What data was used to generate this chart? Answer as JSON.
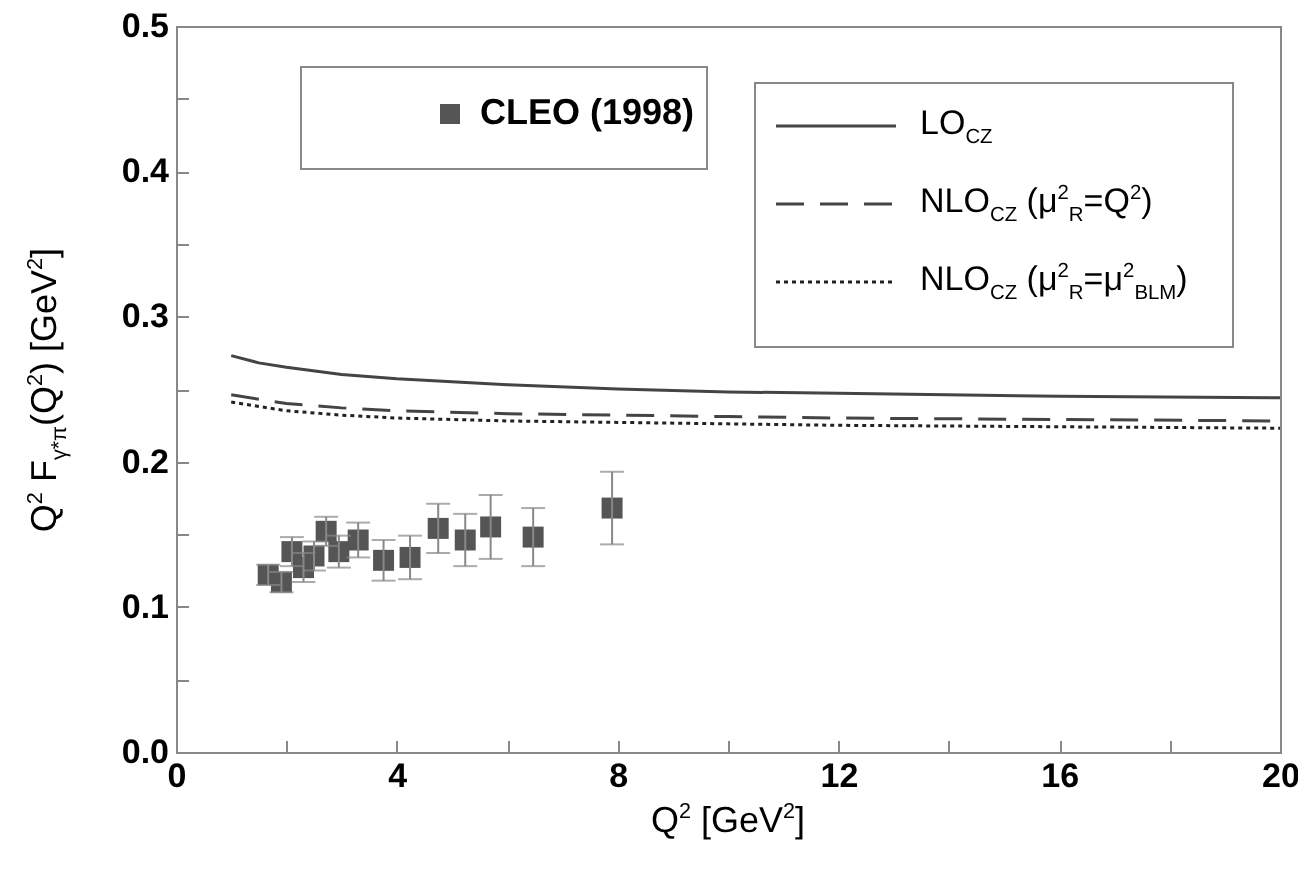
{
  "chart_data": {
    "type": "scatter",
    "xlabel": "Q$^{2}$ [GeV$^{2}$]",
    "ylabel": "Q$^{2}$ F$_{γ*π}$(Q$^{2}$) [GeV$^{2}$]",
    "xlim": [
      0,
      20
    ],
    "ylim": [
      0,
      0.5
    ],
    "xticks": [
      0,
      {
        "value": 2,
        "label": null
      },
      4,
      {
        "value": 6,
        "label": null
      },
      8,
      {
        "value": 10,
        "label": null
      },
      12,
      {
        "value": 14,
        "label": null
      },
      16,
      {
        "value": 18,
        "label": null
      },
      20
    ],
    "yticks": [
      {
        "value": 0,
        "label": "0.0"
      },
      {
        "value": 0.05,
        "label": null
      },
      0.1,
      {
        "value": 0.15,
        "label": null
      },
      0.2,
      {
        "value": 0.25,
        "label": null
      },
      0.3,
      {
        "value": 0.35,
        "label": null
      },
      0.4,
      {
        "value": 0.45,
        "label": null
      },
      0.5
    ],
    "grid": false,
    "legend": "top",
    "series": [
      {
        "name": "CLEO (1998)",
        "type": "scatter",
        "marker": "square",
        "color": "#555555",
        "x": [
          1.67,
          1.91,
          2.1,
          2.31,
          2.5,
          2.72,
          2.95,
          3.3,
          3.76,
          4.24,
          4.75,
          5.24,
          5.7,
          6.47,
          7.9
        ],
        "values": [
          0.122,
          0.117,
          0.138,
          0.127,
          0.135,
          0.152,
          0.138,
          0.146,
          0.132,
          0.134,
          0.154,
          0.146,
          0.155,
          0.148,
          0.168
        ],
        "errors": [
          0.007,
          0.007,
          0.01,
          0.01,
          0.01,
          0.01,
          0.011,
          0.012,
          0.014,
          0.015,
          0.017,
          0.018,
          0.022,
          0.02,
          0.025
        ]
      },
      {
        "name": "LO$_{CZ}$",
        "type": "line",
        "line_style": "solid",
        "color": "#444444",
        "x": [
          1,
          1.5,
          2,
          3,
          4,
          6,
          8,
          10,
          12,
          16,
          20
        ],
        "values": [
          0.273,
          0.268,
          0.265,
          0.26,
          0.257,
          0.253,
          0.25,
          0.248,
          0.247,
          0.245,
          0.244
        ]
      },
      {
        "name": "NLO$_{CZ}$  (μ$^{2}$$_{R}$=Q$^{2}$)",
        "type": "line",
        "line_style": "dashed",
        "color": "#444444",
        "x": [
          1,
          1.5,
          2,
          3,
          4,
          6,
          8,
          10,
          12,
          16,
          20
        ],
        "values": [
          0.246,
          0.243,
          0.24,
          0.237,
          0.235,
          0.233,
          0.232,
          0.231,
          0.23,
          0.229,
          0.228
        ]
      },
      {
        "name": "NLO$_{CZ}$  (μ$^{2}$$_{R}$=μ$^{2}$$_{BLM}$)",
        "type": "line",
        "line_style": "dotted",
        "color": "#222222",
        "x": [
          1,
          1.5,
          2,
          3,
          4,
          6,
          8,
          10,
          12,
          16,
          20
        ],
        "values": [
          0.241,
          0.238,
          0.235,
          0.232,
          0.23,
          0.228,
          0.227,
          0.226,
          0.225,
          0.224,
          0.223
        ]
      }
    ]
  }
}
